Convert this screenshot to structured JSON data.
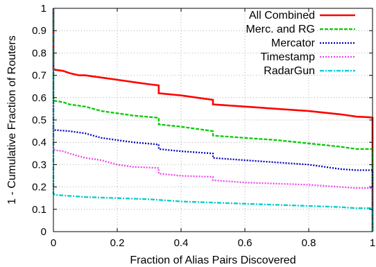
{
  "chart_data": {
    "type": "line",
    "xlabel": "Fraction of Alias Pairs Discovered",
    "ylabel": "1 - Cumulative Fraction of Routers",
    "xlim": [
      0,
      1
    ],
    "ylim": [
      0,
      1
    ],
    "x_ticks": [
      "0",
      "0.2",
      "0.4",
      "0.6",
      "0.8",
      "1"
    ],
    "y_ticks": [
      "0",
      "0.1",
      "0.2",
      "0.3",
      "0.4",
      "0.5",
      "0.6",
      "0.7",
      "0.8",
      "0.9",
      "1"
    ],
    "grid": true,
    "legend_position": "top-right",
    "series": [
      {
        "name": "All Combined",
        "color": "#ff0000",
        "style": "solid",
        "x": [
          0,
          0,
          0.005,
          0.03,
          0.05,
          0.08,
          0.1,
          0.15,
          0.2,
          0.25,
          0.3,
          0.33,
          0.33,
          0.4,
          0.45,
          0.5,
          0.5,
          0.6,
          0.7,
          0.8,
          0.9,
          0.95,
          0.99,
          1,
          1
        ],
        "y": [
          1,
          0.73,
          0.725,
          0.72,
          0.71,
          0.7,
          0.7,
          0.69,
          0.68,
          0.67,
          0.66,
          0.655,
          0.62,
          0.61,
          0.6,
          0.59,
          0.57,
          0.56,
          0.55,
          0.54,
          0.525,
          0.515,
          0.512,
          0.51,
          0
        ]
      },
      {
        "name": "Merc. and RG",
        "color": "#00cc00",
        "style": "dashed",
        "x": [
          0,
          0,
          0.005,
          0.03,
          0.05,
          0.1,
          0.15,
          0.2,
          0.25,
          0.33,
          0.33,
          0.4,
          0.45,
          0.5,
          0.5,
          0.6,
          0.7,
          0.8,
          0.9,
          0.95,
          1,
          1
        ],
        "y": [
          1,
          0.59,
          0.585,
          0.58,
          0.57,
          0.56,
          0.54,
          0.53,
          0.52,
          0.51,
          0.48,
          0.47,
          0.46,
          0.45,
          0.43,
          0.42,
          0.41,
          0.395,
          0.38,
          0.37,
          0.37,
          0
        ]
      },
      {
        "name": "Mercator",
        "color": "#0000bb",
        "style": "dotted",
        "x": [
          0,
          0,
          0.005,
          0.05,
          0.1,
          0.15,
          0.2,
          0.25,
          0.33,
          0.33,
          0.4,
          0.45,
          0.5,
          0.5,
          0.6,
          0.7,
          0.8,
          0.9,
          0.95,
          1,
          1
        ],
        "y": [
          1,
          0.46,
          0.455,
          0.45,
          0.44,
          0.42,
          0.41,
          0.4,
          0.39,
          0.37,
          0.36,
          0.355,
          0.35,
          0.33,
          0.32,
          0.31,
          0.3,
          0.28,
          0.275,
          0.275,
          0
        ]
      },
      {
        "name": "Timestamp",
        "color": "#ee44ee",
        "style": "dotted",
        "x": [
          0,
          0,
          0.005,
          0.03,
          0.05,
          0.1,
          0.15,
          0.2,
          0.25,
          0.33,
          0.33,
          0.4,
          0.5,
          0.5,
          0.6,
          0.7,
          0.8,
          0.9,
          0.95,
          1,
          1
        ],
        "y": [
          1,
          0.37,
          0.365,
          0.36,
          0.35,
          0.33,
          0.32,
          0.3,
          0.29,
          0.285,
          0.26,
          0.25,
          0.245,
          0.23,
          0.22,
          0.215,
          0.21,
          0.2,
          0.195,
          0.195,
          0
        ]
      },
      {
        "name": "RadarGun",
        "color": "#00cccc",
        "style": "dashdot",
        "x": [
          0,
          0,
          0.005,
          0.05,
          0.1,
          0.2,
          0.3,
          0.4,
          0.5,
          0.6,
          0.7,
          0.8,
          0.9,
          0.95,
          1,
          1
        ],
        "y": [
          1,
          0.17,
          0.165,
          0.16,
          0.155,
          0.15,
          0.145,
          0.135,
          0.13,
          0.125,
          0.12,
          0.115,
          0.11,
          0.105,
          0.105,
          0
        ]
      }
    ]
  }
}
